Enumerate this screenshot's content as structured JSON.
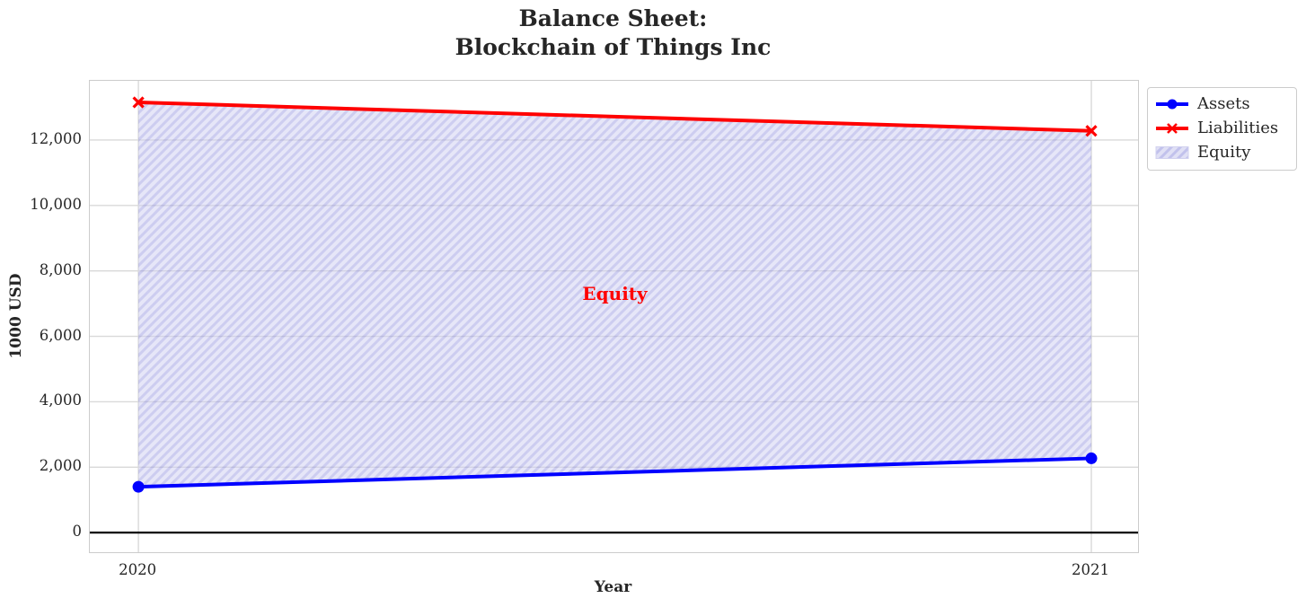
{
  "title": {
    "line1": "Balance Sheet:",
    "line2": "Blockchain of Things Inc"
  },
  "legend": {
    "items": [
      {
        "label": "Assets"
      },
      {
        "label": "Liabilities"
      },
      {
        "label": "Equity"
      }
    ]
  },
  "chart_data": {
    "type": "line",
    "title": "Balance Sheet: Blockchain of Things Inc",
    "xlabel": "Year",
    "ylabel": "1000 USD",
    "x": [
      2020,
      2021
    ],
    "x_tick_labels": [
      "2020",
      "2021"
    ],
    "y_ticks": [
      0,
      2000,
      4000,
      6000,
      8000,
      10000,
      12000
    ],
    "y_tick_labels": [
      "0",
      "2,000",
      "4,000",
      "6,000",
      "8,000",
      "10,000",
      "12,000"
    ],
    "xlim": [
      2019.949,
      2021.049
    ],
    "ylim": [
      -600,
      13810
    ],
    "grid": true,
    "grid_color": "#d9d9d9",
    "series": [
      {
        "name": "Assets",
        "values": [
          1400,
          2270
        ],
        "color": "#0000ff",
        "marker": "circle"
      },
      {
        "name": "Liabilities",
        "values": [
          13150,
          12280
        ],
        "color": "#ff0000",
        "marker": "x"
      }
    ],
    "band": {
      "name": "Equity",
      "between": [
        "Assets",
        "Liabilities"
      ],
      "fill": "#cdcdf0",
      "hatch": "/",
      "hatch_color": "#9b9be0",
      "opacity": 0.5
    },
    "annotation": {
      "text": "Equity",
      "x": 2020.5,
      "y": 7300,
      "color": "#ff0000"
    },
    "zero_line": {
      "y": 0,
      "color": "#000000"
    },
    "legend_position": "outside upper right"
  }
}
